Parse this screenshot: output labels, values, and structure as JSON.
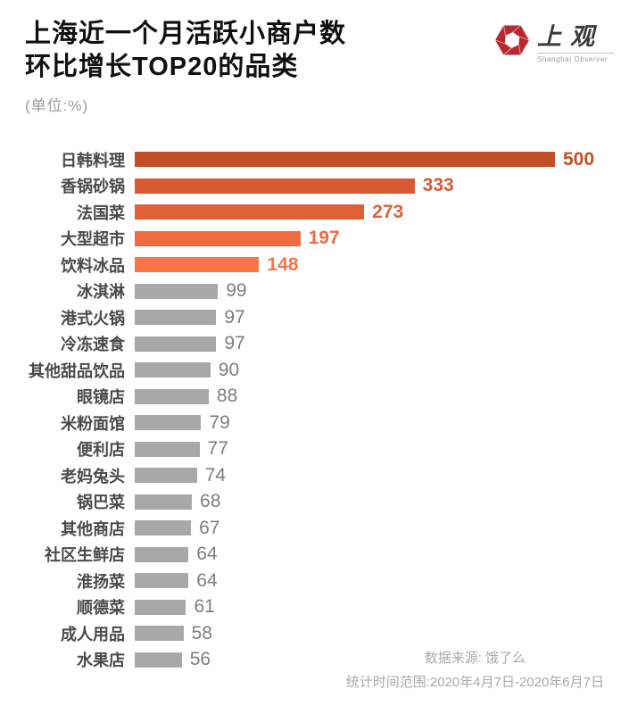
{
  "header": {
    "title_line1": "上海近一个月活跃小商户数",
    "title_line2": "环比增长TOP20的品类",
    "subtitle": "(单位:%)"
  },
  "logo": {
    "name": "上观",
    "subtext": "Shanghai Observer",
    "icon_color": "#b5282e"
  },
  "chart_data": {
    "type": "bar",
    "orientation": "horizontal",
    "title": "上海近一个月活跃小商户数环比增长TOP20的品类",
    "unit": "%",
    "xlim": [
      0,
      500
    ],
    "grid": false,
    "legend": false,
    "categories": [
      "日韩料理",
      "香锅砂锅",
      "法国菜",
      "大型超市",
      "饮料冰品",
      "冰淇淋",
      "港式火锅",
      "冷冻速食",
      "其他甜品饮品",
      "眼镜店",
      "米粉面馆",
      "便利店",
      "老妈兔头",
      "锅巴菜",
      "其他商店",
      "社区生鲜店",
      "淮扬菜",
      "顺德菜",
      "成人用品",
      "水果店"
    ],
    "values": [
      500,
      333,
      273,
      197,
      148,
      99,
      97,
      97,
      90,
      88,
      79,
      77,
      74,
      68,
      67,
      64,
      64,
      61,
      58,
      56
    ],
    "colors": {
      "gray_bar": "#a8a8a8",
      "value_gray": "#7d7d7d",
      "category_label": "#4a4a4a"
    },
    "bars": [
      {
        "label": "日韩料理",
        "value": 500,
        "color": "#c14f27",
        "highlighted": true
      },
      {
        "label": "香锅砂锅",
        "value": 333,
        "color": "#d85a32",
        "highlighted": true
      },
      {
        "label": "法国菜",
        "value": 273,
        "color": "#dd6037",
        "highlighted": true
      },
      {
        "label": "大型超市",
        "value": 197,
        "color": "#ee6a3f",
        "highlighted": true
      },
      {
        "label": "饮料冰品",
        "value": 148,
        "color": "#f97549",
        "highlighted": true
      },
      {
        "label": "冰淇淋",
        "value": 99,
        "color": "#a8a8a8",
        "highlighted": false
      },
      {
        "label": "港式火锅",
        "value": 97,
        "color": "#a8a8a8",
        "highlighted": false
      },
      {
        "label": "冷冻速食",
        "value": 97,
        "color": "#a8a8a8",
        "highlighted": false
      },
      {
        "label": "其他甜品饮品",
        "value": 90,
        "color": "#a8a8a8",
        "highlighted": false
      },
      {
        "label": "眼镜店",
        "value": 88,
        "color": "#a8a8a8",
        "highlighted": false
      },
      {
        "label": "米粉面馆",
        "value": 79,
        "color": "#a8a8a8",
        "highlighted": false
      },
      {
        "label": "便利店",
        "value": 77,
        "color": "#a8a8a8",
        "highlighted": false
      },
      {
        "label": "老妈兔头",
        "value": 74,
        "color": "#a8a8a8",
        "highlighted": false
      },
      {
        "label": "锅巴菜",
        "value": 68,
        "color": "#a8a8a8",
        "highlighted": false
      },
      {
        "label": "其他商店",
        "value": 67,
        "color": "#a8a8a8",
        "highlighted": false
      },
      {
        "label": "社区生鲜店",
        "value": 64,
        "color": "#a8a8a8",
        "highlighted": false
      },
      {
        "label": "淮扬菜",
        "value": 64,
        "color": "#a8a8a8",
        "highlighted": false
      },
      {
        "label": "顺德菜",
        "value": 61,
        "color": "#a8a8a8",
        "highlighted": false
      },
      {
        "label": "成人用品",
        "value": 58,
        "color": "#a8a8a8",
        "highlighted": false
      },
      {
        "label": "水果店",
        "value": 56,
        "color": "#a8a8a8",
        "highlighted": false
      }
    ]
  },
  "footer": {
    "source": "数据来源: 饿了么",
    "range": "统计时间范围:2020年4月7日-2020年6月7日"
  }
}
